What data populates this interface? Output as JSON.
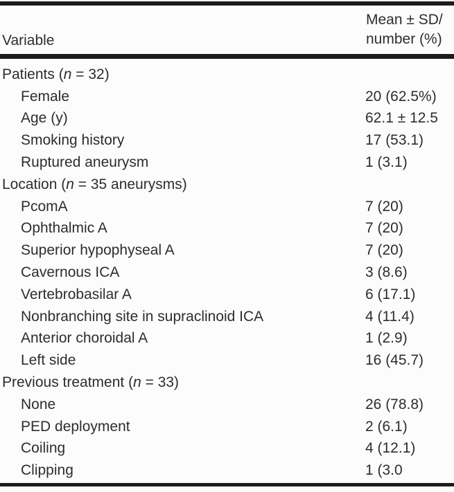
{
  "table": {
    "header": {
      "variable": "Variable",
      "value_line1": "Mean ± SD/",
      "value_line2": "number (%)"
    },
    "rows": [
      {
        "label": "Patients (n = 32)",
        "value": "",
        "indent": false
      },
      {
        "label": "Female",
        "value": "20 (62.5%)",
        "indent": true
      },
      {
        "label": "Age (y)",
        "value": "62.1 ± 12.5",
        "indent": true
      },
      {
        "label": "Smoking history",
        "value": "17 (53.1)",
        "indent": true
      },
      {
        "label": "Ruptured aneurysm",
        "value": "1 (3.1)",
        "indent": true
      },
      {
        "label": "Location (n = 35 aneurysms)",
        "value": "",
        "indent": false
      },
      {
        "label": "PcomA",
        "value": "7 (20)",
        "indent": true
      },
      {
        "label": "Ophthalmic A",
        "value": "7 (20)",
        "indent": true
      },
      {
        "label": "Superior hypophyseal A",
        "value": "7 (20)",
        "indent": true
      },
      {
        "label": "Cavernous ICA",
        "value": "3 (8.6)",
        "indent": true
      },
      {
        "label": "Vertebrobasilar A",
        "value": "6 (17.1)",
        "indent": true
      },
      {
        "label": "Nonbranching site in supraclinoid ICA",
        "value": "4 (11.4)",
        "indent": true
      },
      {
        "label": "Anterior choroidal A",
        "value": "1 (2.9)",
        "indent": true
      },
      {
        "label": "Left side",
        "value": "16 (45.7)",
        "indent": true
      },
      {
        "label": "Previous treatment (n = 33)",
        "value": "",
        "indent": false
      },
      {
        "label": "None",
        "value": "26 (78.8)",
        "indent": true
      },
      {
        "label": "PED deployment",
        "value": "2 (6.1)",
        "indent": true
      },
      {
        "label": "Coiling",
        "value": "4 (12.1)",
        "indent": true
      },
      {
        "label": "Clipping",
        "value": "1 (3.0",
        "indent": true
      }
    ],
    "colors": {
      "text": "#2d2d2d",
      "rule": "#1c1c1c",
      "background": "#fcfcfc"
    }
  }
}
